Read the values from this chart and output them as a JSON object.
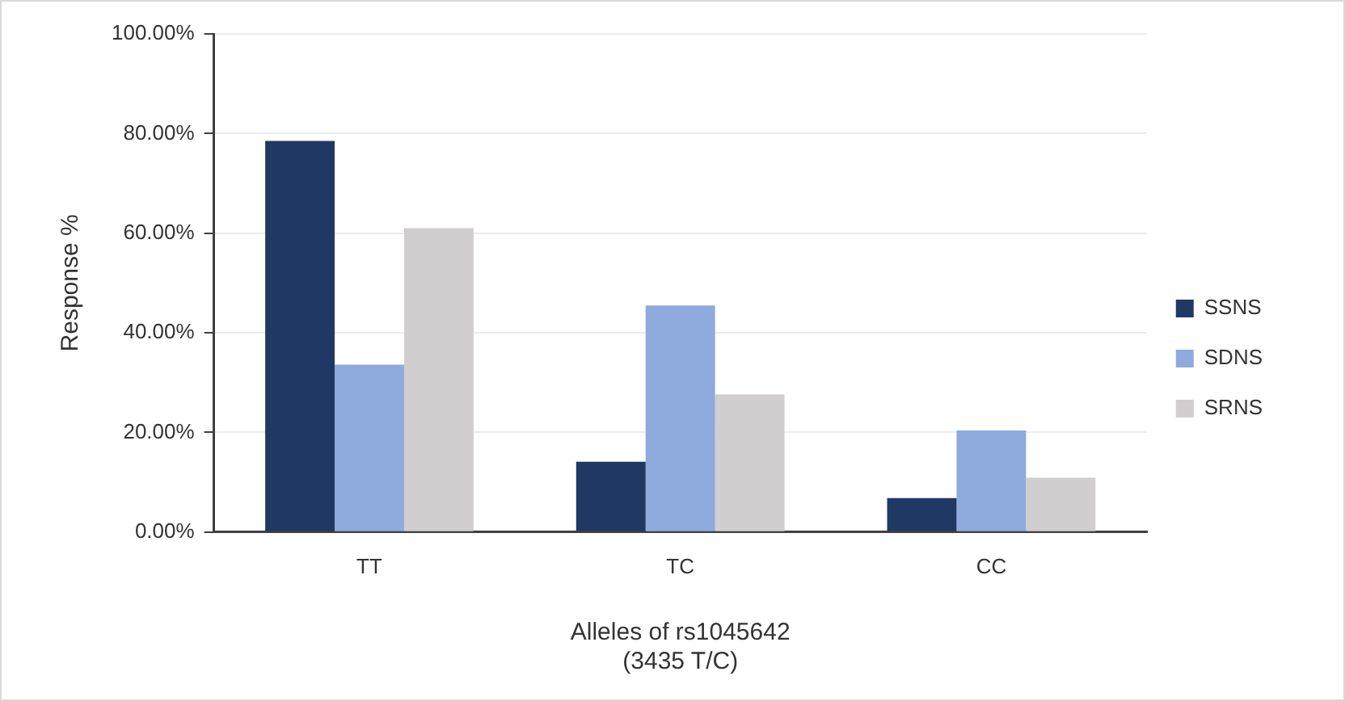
{
  "chart_data": {
    "type": "bar",
    "xlabel": "Alleles of rs1045642\n(3435 T/C)",
    "ylabel": "Response %",
    "categories": [
      "TT",
      "TC",
      "CC"
    ],
    "series": [
      {
        "name": "SSNS",
        "color": "#203864",
        "values": [
          78.5,
          14.1,
          6.8
        ]
      },
      {
        "name": "SDNS",
        "color": "#8faadc",
        "values": [
          33.6,
          45.5,
          20.4
        ]
      },
      {
        "name": "SRNS",
        "color": "#d0cece",
        "values": [
          61.0,
          27.6,
          10.9
        ]
      }
    ],
    "ylim": [
      0,
      100
    ],
    "yticks": [
      {
        "value": 0,
        "label": "0.00%"
      },
      {
        "value": 20,
        "label": "20.00%"
      },
      {
        "value": 40,
        "label": "40.00%"
      },
      {
        "value": 60,
        "label": "60.00%"
      },
      {
        "value": 80,
        "label": "80.00%"
      },
      {
        "value": 100,
        "label": "100.00%"
      }
    ],
    "grid": "y",
    "legend": "right"
  }
}
